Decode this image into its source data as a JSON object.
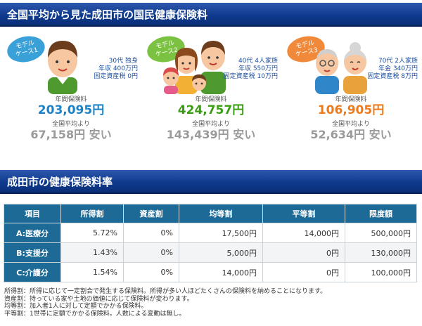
{
  "section1": {
    "title": "全国平均から見た成田市の国民健康保険料"
  },
  "cases": [
    {
      "badge": [
        "モデル",
        "ケース1"
      ],
      "badge_color": "#3aa0d8",
      "profile": [
        "30代 独身",
        "年収 400万円",
        "固定資産税 0円"
      ],
      "label": "年間保険料",
      "amount": "203,095円",
      "amount_color": "#1a82c8",
      "compare_label": "全国平均より",
      "diff": "67,158円 安い"
    },
    {
      "badge": [
        "モデル",
        "ケース2"
      ],
      "badge_color": "#7cc242",
      "profile": [
        "40代 4人家族",
        "年収 550万円",
        "固定資産税 10万円"
      ],
      "label": "年間保険料",
      "amount": "424,757円",
      "amount_color": "#3a9e12",
      "compare_label": "全国平均より",
      "diff": "143,439円 安い"
    },
    {
      "badge": [
        "モデル",
        "ケース3"
      ],
      "badge_color": "#f08a3a",
      "profile": [
        "70代 2人家族",
        "年金 340万円",
        "固定資産税 8万円"
      ],
      "label": "年間保険料",
      "amount": "106,905円",
      "amount_color": "#ef7a1a",
      "compare_label": "全国平均より",
      "diff": "52,634円 安い"
    }
  ],
  "section2": {
    "title": "成田市の健康保険料率"
  },
  "table": {
    "headers": [
      "項目",
      "所得割",
      "資産割",
      "均等割",
      "平等割",
      "限度額"
    ],
    "rows": [
      [
        "A:医療分",
        "5.72%",
        "0%",
        "17,500円",
        "14,000円",
        "500,000円"
      ],
      [
        "B:支援分",
        "1.43%",
        "0%",
        "5,000円",
        "0円",
        "130,000円"
      ],
      [
        "C:介護分",
        "1.54%",
        "0%",
        "14,000円",
        "0円",
        "100,000円"
      ]
    ]
  },
  "notes": [
    "所得割：所得に応じて一定割合で発生する保険料。所得が多い人ほどたくさんの保険料を納めることになります。",
    "資産割：持っている家や土地の価値に応じて保険料が変わります。",
    "均等割：加入者1人に対して定額でかかる保険料。",
    "平等割：1世帯に定額でかかる保険料。人数による変動は無し。"
  ]
}
